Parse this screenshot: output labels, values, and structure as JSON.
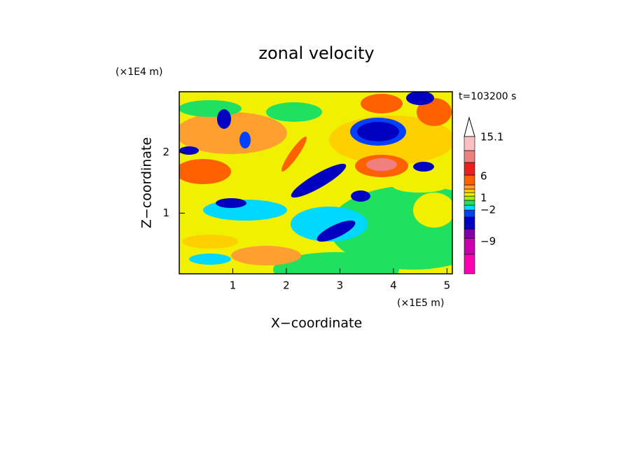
{
  "chart_data": {
    "type": "contour",
    "title": "zonal velocity",
    "x_label": "X−coordinate",
    "y_label": "Z−coordinate",
    "x_unit": "(×1E5 m)",
    "y_unit": "(×1E4 m)",
    "annotation": "t=103200 s",
    "xlim": [
      0,
      5.1
    ],
    "ylim": [
      0,
      3
    ],
    "xticks": [
      1,
      2,
      3,
      4,
      5
    ],
    "yticks": [
      1,
      2
    ],
    "colorbar": {
      "colors": [
        "#ff00b0",
        "#c800b0",
        "#8000a8",
        "#0000c0",
        "#0040ff",
        "#00d8ff",
        "#20e060",
        "#a8ec00",
        "#f0f000",
        "#ffd000",
        "#ffa030",
        "#ff6000",
        "#e82020",
        "#f08080",
        "#f8c0c0"
      ],
      "ticks": [
        {
          "value": 15.1,
          "label": "15.1"
        },
        6,
        1,
        {
          "value": -2,
          "label": "−2"
        },
        {
          "value": -9,
          "label": "−9"
        }
      ]
    }
  }
}
